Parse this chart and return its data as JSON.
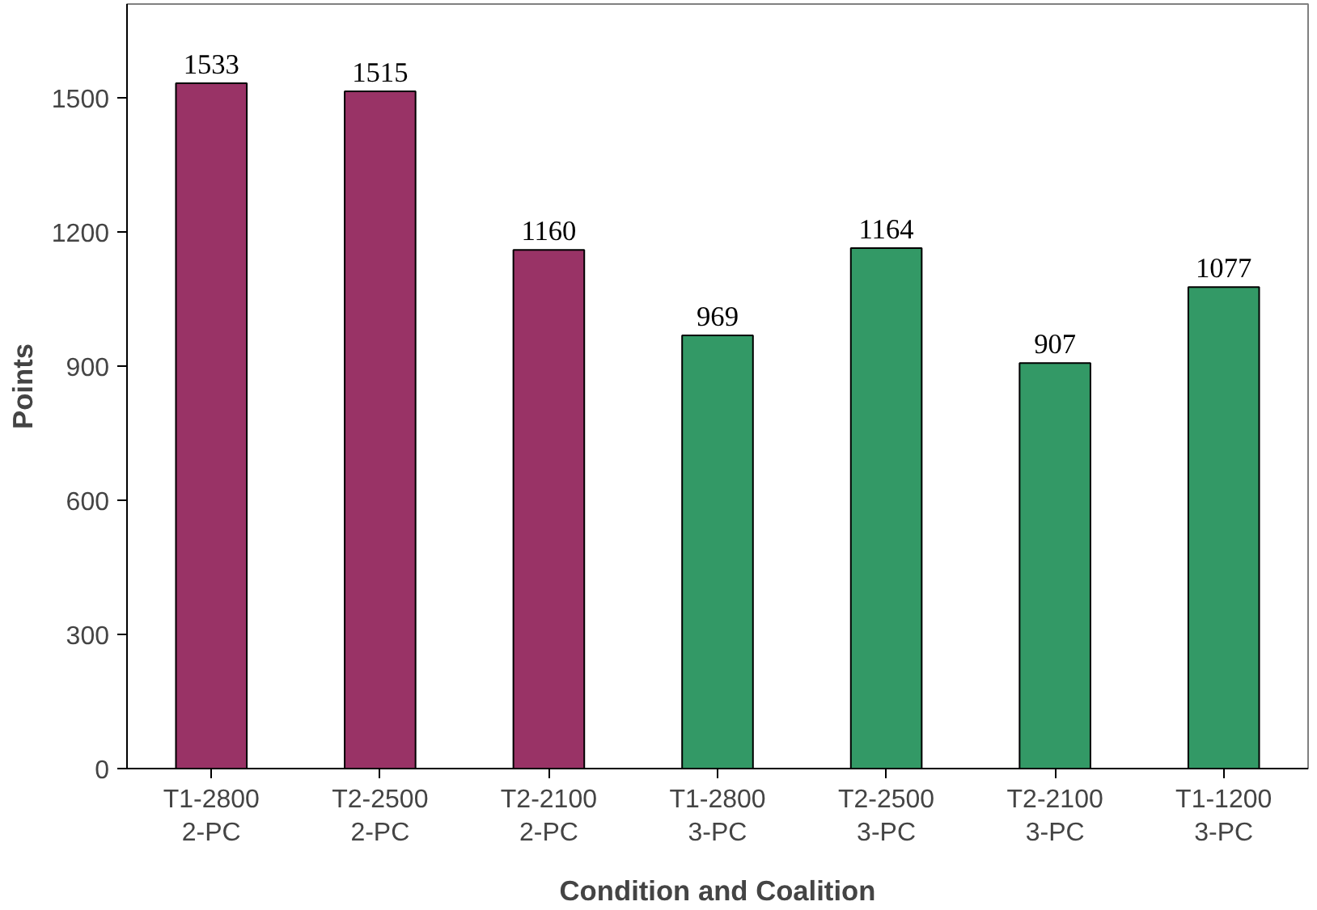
{
  "chart_data": {
    "type": "bar",
    "xlabel": "Condition and Coalition",
    "ylabel": "Points",
    "categories": [
      "T1-2800\n2-PC",
      "T2-2500\n2-PC",
      "T2-2100\n2-PC",
      "T1-2800\n3-PC",
      "T2-2500\n3-PC",
      "T2-2100\n3-PC",
      "T1-1200\n3-PC"
    ],
    "values": [
      1533,
      1515,
      1160,
      969,
      1164,
      907,
      1077
    ],
    "colors": [
      "#993366",
      "#993366",
      "#993366",
      "#339966",
      "#339966",
      "#339966",
      "#339966"
    ],
    "ylim": [
      0,
      1710
    ],
    "yticks": [
      0,
      300,
      600,
      900,
      1200,
      1500
    ],
    "grid": false,
    "data_labels": true
  }
}
